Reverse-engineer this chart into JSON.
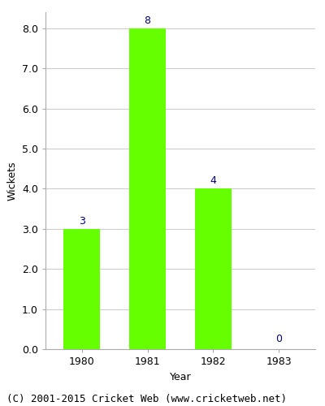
{
  "categories": [
    "1980",
    "1981",
    "1982",
    "1983"
  ],
  "values": [
    3,
    8,
    4,
    0
  ],
  "bar_color": "#66ff00",
  "label_color": "#000080",
  "xlabel": "Year",
  "ylabel": "Wickets",
  "ylim": [
    0,
    8.4
  ],
  "yticks": [
    0.0,
    1.0,
    2.0,
    3.0,
    4.0,
    5.0,
    6.0,
    7.0,
    8.0
  ],
  "title": "",
  "footer": "(C) 2001-2015 Cricket Web (www.cricketweb.net)",
  "footer_fontsize": 9,
  "label_fontsize": 9,
  "axis_label_fontsize": 9,
  "tick_fontsize": 9,
  "spine_color": "#aaaaaa",
  "grid_color": "#cccccc"
}
